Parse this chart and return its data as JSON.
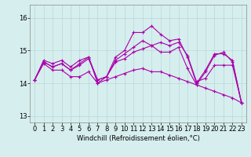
{
  "xlabel": "Windchill (Refroidissement éolien,°C)",
  "background_color": "#d6eeee",
  "grid_color": "#b8d8d8",
  "line_color": "#aa00aa",
  "spine_color": "#888888",
  "xlim": [
    -0.5,
    23.5
  ],
  "ylim": [
    12.8,
    16.4
  ],
  "yticks": [
    13,
    14,
    15,
    16
  ],
  "xticks": [
    0,
    1,
    2,
    3,
    4,
    5,
    6,
    7,
    8,
    9,
    10,
    11,
    12,
    13,
    14,
    15,
    16,
    17,
    18,
    19,
    20,
    21,
    22,
    23
  ],
  "series": [
    [
      14.1,
      14.7,
      14.6,
      14.7,
      14.5,
      14.7,
      14.8,
      14.1,
      14.2,
      14.8,
      15.0,
      15.55,
      15.55,
      15.75,
      15.5,
      15.3,
      15.35,
      14.8,
      14.0,
      14.4,
      14.9,
      14.9,
      14.7,
      13.4
    ],
    [
      14.1,
      14.65,
      14.5,
      14.6,
      14.4,
      14.55,
      14.75,
      14.1,
      14.2,
      14.65,
      14.75,
      14.95,
      15.05,
      15.15,
      15.25,
      15.15,
      15.25,
      14.85,
      14.05,
      14.15,
      14.55,
      14.55,
      14.55,
      13.4
    ],
    [
      14.1,
      14.65,
      14.5,
      14.6,
      14.4,
      14.6,
      14.8,
      14.0,
      14.2,
      14.7,
      14.9,
      15.1,
      15.3,
      15.15,
      14.95,
      14.95,
      15.1,
      14.45,
      13.95,
      14.35,
      14.85,
      14.95,
      14.65,
      13.4
    ],
    [
      14.1,
      14.6,
      14.4,
      14.4,
      14.2,
      14.2,
      14.35,
      14.0,
      14.1,
      14.2,
      14.3,
      14.4,
      14.45,
      14.35,
      14.35,
      14.25,
      14.15,
      14.05,
      13.95,
      13.85,
      13.75,
      13.65,
      13.55,
      13.4
    ]
  ],
  "tick_fontsize": 6,
  "xlabel_fontsize": 6
}
